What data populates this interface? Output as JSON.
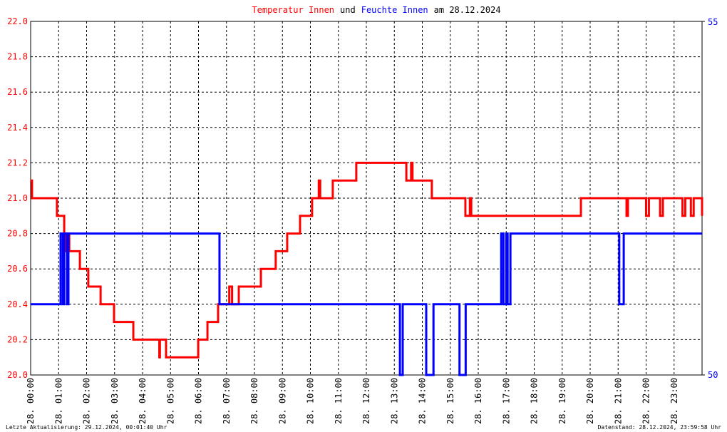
{
  "chart_data": {
    "type": "line",
    "title_parts": [
      {
        "text": "Temperatur Innen",
        "color": "#ff0000"
      },
      {
        "text": "und",
        "color": "#000000"
      },
      {
        "text": "Feuchte Innen",
        "color": "#0000ff"
      },
      {
        "text": "am 28.12.2024",
        "color": "#000000"
      }
    ],
    "xlim": [
      0,
      24
    ],
    "xticks": [
      {
        "value": 0,
        "label": "28. 00:00"
      },
      {
        "value": 1,
        "label": "28. 01:00"
      },
      {
        "value": 2,
        "label": "28. 02:00"
      },
      {
        "value": 3,
        "label": "28. 03:00"
      },
      {
        "value": 4,
        "label": "28. 04:00"
      },
      {
        "value": 5,
        "label": "28. 05:00"
      },
      {
        "value": 6,
        "label": "28. 06:00"
      },
      {
        "value": 7,
        "label": "28. 07:00"
      },
      {
        "value": 8,
        "label": "28. 08:00"
      },
      {
        "value": 9,
        "label": "28. 09:00"
      },
      {
        "value": 10,
        "label": "28. 10:00"
      },
      {
        "value": 11,
        "label": "28. 11:00"
      },
      {
        "value": 12,
        "label": "28. 12:00"
      },
      {
        "value": 13,
        "label": "28. 13:00"
      },
      {
        "value": 14,
        "label": "28. 14:00"
      },
      {
        "value": 15,
        "label": "28. 15:00"
      },
      {
        "value": 16,
        "label": "28. 16:00"
      },
      {
        "value": 17,
        "label": "28. 17:00"
      },
      {
        "value": 18,
        "label": "28. 18:00"
      },
      {
        "value": 19,
        "label": "28. 19:00"
      },
      {
        "value": 20,
        "label": "28. 20:00"
      },
      {
        "value": 21,
        "label": "28. 21:00"
      },
      {
        "value": 22,
        "label": "28. 22:00"
      },
      {
        "value": 23,
        "label": "28. 23:00"
      }
    ],
    "ylim": [
      20.0,
      22.0
    ],
    "yticks": [
      {
        "value": 20.0,
        "label": "20.0"
      },
      {
        "value": 20.2,
        "label": "20.2"
      },
      {
        "value": 20.4,
        "label": "20.4"
      },
      {
        "value": 20.6,
        "label": "20.6"
      },
      {
        "value": 20.8,
        "label": "20.8"
      },
      {
        "value": 21.0,
        "label": "21.0"
      },
      {
        "value": 21.2,
        "label": "21.2"
      },
      {
        "value": 21.4,
        "label": "21.4"
      },
      {
        "value": 21.6,
        "label": "21.6"
      },
      {
        "value": 21.8,
        "label": "21.8"
      },
      {
        "value": 22.0,
        "label": "22.0"
      }
    ],
    "y2lim": [
      50,
      55
    ],
    "y2ticks": [
      50,
      55
    ],
    "grid": true,
    "series": [
      {
        "name": "Temperatur Innen",
        "color": "#ff0000",
        "x": [
          0,
          0.05,
          0.94,
          1.2,
          1.25,
          1.3,
          1.38,
          1.76,
          2.06,
          2.5,
          2.98,
          3.67,
          4.6,
          4.62,
          4.84,
          5.99,
          6.32,
          6.7,
          7.1,
          7.2,
          7.44,
          8.23,
          8.76,
          9.17,
          9.63,
          10.06,
          10.3,
          10.35,
          10.8,
          11.64,
          13.43,
          13.6,
          13.65,
          14.34,
          15.54,
          15.7,
          15.75,
          19.67,
          21.3,
          21.35,
          22.0,
          22.1,
          22.5,
          22.6,
          23.3,
          23.4,
          23.6,
          23.7,
          24
        ],
        "values": [
          21.1,
          21.0,
          20.9,
          20.8,
          20.7,
          20.8,
          20.7,
          20.6,
          20.5,
          20.4,
          20.3,
          20.2,
          20.1,
          20.2,
          20.1,
          20.2,
          20.3,
          20.4,
          20.5,
          20.4,
          20.5,
          20.6,
          20.7,
          20.8,
          20.9,
          21.0,
          21.1,
          21.0,
          21.1,
          21.2,
          21.1,
          21.2,
          21.1,
          21.0,
          20.9,
          21.0,
          20.9,
          21.0,
          20.9,
          21.0,
          20.9,
          21.0,
          20.9,
          21.0,
          20.9,
          21.0,
          20.9,
          21.0,
          20.9
        ]
      },
      {
        "name": "Feuchte Innen",
        "color": "#0000ff",
        "axis": "y2",
        "x": [
          0,
          1.07,
          1.15,
          1.2,
          1.3,
          1.35,
          6.75,
          13.2,
          13.3,
          14.14,
          14.4,
          15.33,
          15.55,
          16.82,
          16.9,
          17.0,
          17.05,
          17.15,
          21.04,
          21.2,
          24
        ],
        "values": [
          51,
          52,
          51,
          52,
          51,
          52,
          51,
          50,
          51,
          50,
          51,
          50,
          51,
          52,
          51,
          52,
          51,
          52,
          51,
          52,
          52
        ]
      }
    ],
    "footer_left": "Letzte Aktualisierung: 29.12.2024, 00:01:40 Uhr",
    "footer_right": "Datenstand: 28.12.2024, 23:59:58 Uhr"
  }
}
